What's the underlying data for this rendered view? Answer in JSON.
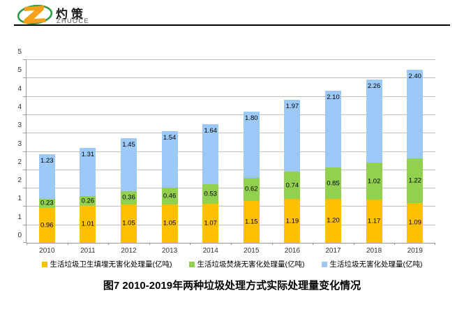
{
  "logo": {
    "brand_cn": "灼策",
    "brand_en": "ZHUOCE"
  },
  "title": "图7  2010-2019年两种垃圾处理方式实际处理量变化情况",
  "colors": {
    "landfill_orange": "#FFC000",
    "incineration_green": "#92D050",
    "harmless_blue": "#9CC9F7",
    "grid": "#C0C0C0",
    "axis": "#999999",
    "logo_green": "#2E9B47",
    "logo_orange": "#F5A21B"
  },
  "chart_data": {
    "type": "bar",
    "stacked": true,
    "categories": [
      "2010",
      "2011",
      "2012",
      "2013",
      "2014",
      "2015",
      "2016",
      "2017",
      "2018",
      "2019"
    ],
    "series": [
      {
        "name": "生活垃圾卫生填埋无害化处理量(亿吨)",
        "color": "#FFC000",
        "label_position": "center",
        "values": [
          0.96,
          1.01,
          1.05,
          1.05,
          1.07,
          1.15,
          1.19,
          1.2,
          1.17,
          1.09
        ]
      },
      {
        "name": "生活垃圾焚烧无害化处理量(亿吨)",
        "color": "#92D050",
        "label_position": "center",
        "values": [
          0.23,
          0.26,
          0.36,
          0.46,
          0.53,
          0.62,
          0.74,
          0.85,
          1.02,
          1.22
        ]
      },
      {
        "name": "生活垃圾无害化处理量(亿吨)",
        "color": "#9CC9F7",
        "label_position": "inside_end",
        "values": [
          1.23,
          1.31,
          1.45,
          1.54,
          1.64,
          1.8,
          1.97,
          2.1,
          2.26,
          2.4
        ]
      }
    ],
    "ylim": [
      0,
      5
    ],
    "ytick_step": 0.5,
    "ytick_labels_bottom_to_top": [
      "0",
      "1",
      "1",
      "2",
      "2",
      "3",
      "3",
      "4",
      "4",
      "5",
      "5"
    ],
    "grid": true,
    "legend_position": "bottom",
    "value_label_decimals": 2
  }
}
